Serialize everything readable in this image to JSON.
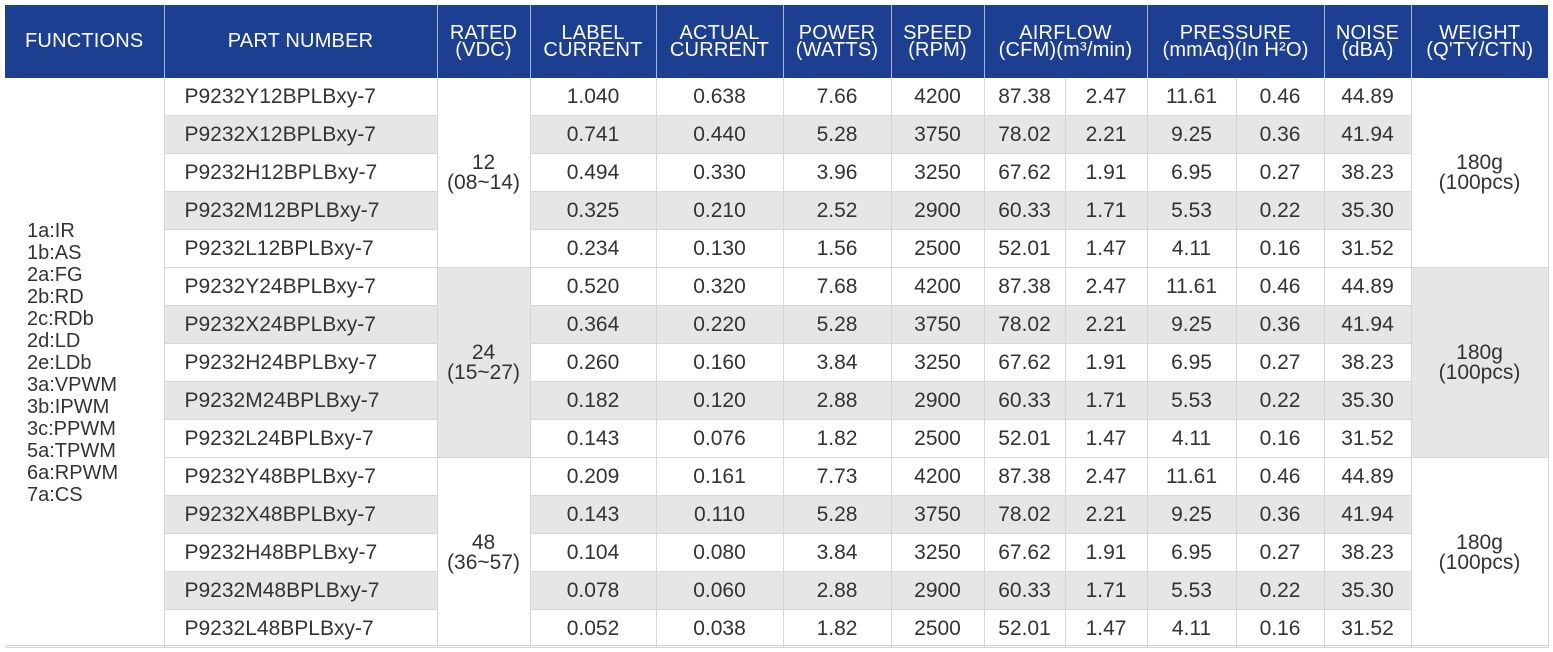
{
  "header": {
    "functions": "FUNCTIONS",
    "part_number": "PART NUMBER",
    "rated": [
      "RATED",
      "(VDC)"
    ],
    "label_current": [
      "LABEL",
      "CURRENT"
    ],
    "actual_current": [
      "ACTUAL",
      "CURRENT"
    ],
    "power": [
      "POWER",
      "(WATTS)"
    ],
    "speed": [
      "SPEED",
      "(RPM)"
    ],
    "airflow": [
      "AIRFLOW",
      "(CFM)(m³/min)"
    ],
    "pressure": [
      "PRESSURE",
      "(mmAq)(In H²O)"
    ],
    "noise": [
      "NOISE",
      "(dBA)"
    ],
    "weight": [
      "WEIGHT",
      "(Q'TY/CTN)"
    ]
  },
  "functions": [
    "1a:IR",
    "1b:AS",
    "2a:FG",
    "2b:RD",
    "2c:RDb",
    "2d:LD",
    "2e:LDb",
    "3a:VPWM",
    "3b:IPWM",
    "3c:PPWM",
    "5a:TPWM",
    "6a:RPWM",
    "7a:CS"
  ],
  "groups": [
    {
      "rated": [
        "12",
        "(08~14)"
      ],
      "weight": [
        "180g",
        "(100pcs)"
      ],
      "rows": [
        {
          "part": "P9232Y12BPLBxy-7",
          "label": "1.040",
          "actual": "0.638",
          "power": "7.66",
          "speed": "4200",
          "cfm": "87.38",
          "m3": "2.47",
          "mmaq": "11.61",
          "inh2o": "0.46",
          "noise": "44.89"
        },
        {
          "part": "P9232X12BPLBxy-7",
          "label": "0.741",
          "actual": "0.440",
          "power": "5.28",
          "speed": "3750",
          "cfm": "78.02",
          "m3": "2.21",
          "mmaq": "9.25",
          "inh2o": "0.36",
          "noise": "41.94"
        },
        {
          "part": "P9232H12BPLBxy-7",
          "label": "0.494",
          "actual": "0.330",
          "power": "3.96",
          "speed": "3250",
          "cfm": "67.62",
          "m3": "1.91",
          "mmaq": "6.95",
          "inh2o": "0.27",
          "noise": "38.23"
        },
        {
          "part": "P9232M12BPLBxy-7",
          "label": "0.325",
          "actual": "0.210",
          "power": "2.52",
          "speed": "2900",
          "cfm": "60.33",
          "m3": "1.71",
          "mmaq": "5.53",
          "inh2o": "0.22",
          "noise": "35.30"
        },
        {
          "part": "P9232L12BPLBxy-7",
          "label": "0.234",
          "actual": "0.130",
          "power": "1.56",
          "speed": "2500",
          "cfm": "52.01",
          "m3": "1.47",
          "mmaq": "4.11",
          "inh2o": "0.16",
          "noise": "31.52"
        }
      ]
    },
    {
      "rated": [
        "24",
        "(15~27)"
      ],
      "weight": [
        "180g",
        "(100pcs)"
      ],
      "rows": [
        {
          "part": "P9232Y24BPLBxy-7",
          "label": "0.520",
          "actual": "0.320",
          "power": "7.68",
          "speed": "4200",
          "cfm": "87.38",
          "m3": "2.47",
          "mmaq": "11.61",
          "inh2o": "0.46",
          "noise": "44.89"
        },
        {
          "part": "P9232X24BPLBxy-7",
          "label": "0.364",
          "actual": "0.220",
          "power": "5.28",
          "speed": "3750",
          "cfm": "78.02",
          "m3": "2.21",
          "mmaq": "9.25",
          "inh2o": "0.36",
          "noise": "41.94"
        },
        {
          "part": "P9232H24BPLBxy-7",
          "label": "0.260",
          "actual": "0.160",
          "power": "3.84",
          "speed": "3250",
          "cfm": "67.62",
          "m3": "1.91",
          "mmaq": "6.95",
          "inh2o": "0.27",
          "noise": "38.23"
        },
        {
          "part": "P9232M24BPLBxy-7",
          "label": "0.182",
          "actual": "0.120",
          "power": "2.88",
          "speed": "2900",
          "cfm": "60.33",
          "m3": "1.71",
          "mmaq": "5.53",
          "inh2o": "0.22",
          "noise": "35.30"
        },
        {
          "part": "P9232L24BPLBxy-7",
          "label": "0.143",
          "actual": "0.076",
          "power": "1.82",
          "speed": "2500",
          "cfm": "52.01",
          "m3": "1.47",
          "mmaq": "4.11",
          "inh2o": "0.16",
          "noise": "31.52"
        }
      ]
    },
    {
      "rated": [
        "48",
        "(36~57)"
      ],
      "weight": [
        "180g",
        "(100pcs)"
      ],
      "rows": [
        {
          "part": "P9232Y48BPLBxy-7",
          "label": "0.209",
          "actual": "0.161",
          "power": "7.73",
          "speed": "4200",
          "cfm": "87.38",
          "m3": "2.47",
          "mmaq": "11.61",
          "inh2o": "0.46",
          "noise": "44.89"
        },
        {
          "part": "P9232X48BPLBxy-7",
          "label": "0.143",
          "actual": "0.110",
          "power": "5.28",
          "speed": "3750",
          "cfm": "78.02",
          "m3": "2.21",
          "mmaq": "9.25",
          "inh2o": "0.36",
          "noise": "41.94"
        },
        {
          "part": "P9232H48BPLBxy-7",
          "label": "0.104",
          "actual": "0.080",
          "power": "3.84",
          "speed": "3250",
          "cfm": "67.62",
          "m3": "1.91",
          "mmaq": "6.95",
          "inh2o": "0.27",
          "noise": "38.23"
        },
        {
          "part": "P9232M48BPLBxy-7",
          "label": "0.078",
          "actual": "0.060",
          "power": "2.88",
          "speed": "2900",
          "cfm": "60.33",
          "m3": "1.71",
          "mmaq": "5.53",
          "inh2o": "0.22",
          "noise": "35.30"
        },
        {
          "part": "P9232L48BPLBxy-7",
          "label": "0.052",
          "actual": "0.038",
          "power": "1.82",
          "speed": "2500",
          "cfm": "52.01",
          "m3": "1.47",
          "mmaq": "4.11",
          "inh2o": "0.16",
          "noise": "31.52"
        }
      ]
    }
  ],
  "colors": {
    "header_bg": "#1c3f91",
    "shade": "#e6e6e6",
    "text": "#333333"
  }
}
